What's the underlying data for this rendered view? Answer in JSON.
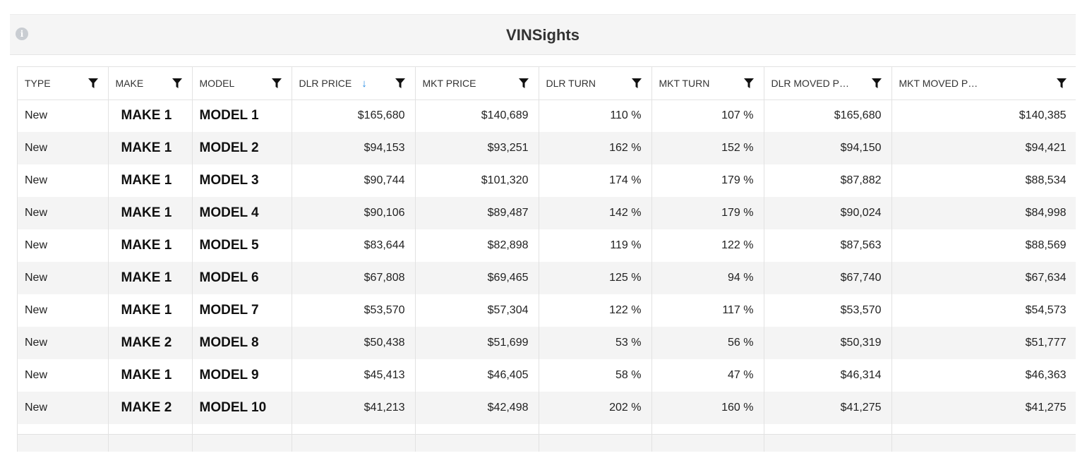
{
  "header": {
    "title": "VINSights",
    "info_icon": "info-icon"
  },
  "columns": [
    {
      "label": "TYPE",
      "sort": false
    },
    {
      "label": "MAKE",
      "sort": false
    },
    {
      "label": "MODEL",
      "sort": false
    },
    {
      "label": "DLR PRICE",
      "sort": true,
      "sort_direction": "descending"
    },
    {
      "label": "MKT PRICE",
      "sort": false
    },
    {
      "label": "DLR TURN",
      "sort": false
    },
    {
      "label": "MKT TURN",
      "sort": false
    },
    {
      "label": "DLR MOVED PRI...",
      "sort": false
    },
    {
      "label": "MKT MOVED PRICE",
      "sort": false
    }
  ],
  "rows": [
    {
      "type": "New",
      "make": "MAKE 1",
      "model": "MODEL 1",
      "dlr_price": "$165,680",
      "mkt_price": "$140,689",
      "dlr_turn": "110 %",
      "mkt_turn": "107 %",
      "dlr_moved": "$165,680",
      "mkt_moved": "$140,385"
    },
    {
      "type": "New",
      "make": "MAKE 1",
      "model": "MODEL 2",
      "dlr_price": "$94,153",
      "mkt_price": "$93,251",
      "dlr_turn": "162 %",
      "mkt_turn": "152 %",
      "dlr_moved": "$94,150",
      "mkt_moved": "$94,421"
    },
    {
      "type": "New",
      "make": "MAKE 1",
      "model": "MODEL 3",
      "dlr_price": "$90,744",
      "mkt_price": "$101,320",
      "dlr_turn": "174 %",
      "mkt_turn": "179 %",
      "dlr_moved": "$87,882",
      "mkt_moved": "$88,534"
    },
    {
      "type": "New",
      "make": "MAKE 1",
      "model": "MODEL 4",
      "dlr_price": "$90,106",
      "mkt_price": "$89,487",
      "dlr_turn": "142 %",
      "mkt_turn": "179 %",
      "dlr_moved": "$90,024",
      "mkt_moved": "$84,998"
    },
    {
      "type": "New",
      "make": "MAKE 1",
      "model": "MODEL 5",
      "dlr_price": "$83,644",
      "mkt_price": "$82,898",
      "dlr_turn": "119 %",
      "mkt_turn": "122 %",
      "dlr_moved": "$87,563",
      "mkt_moved": "$88,569"
    },
    {
      "type": "New",
      "make": "MAKE 1",
      "model": "MODEL 6",
      "dlr_price": "$67,808",
      "mkt_price": "$69,465",
      "dlr_turn": "125 %",
      "mkt_turn": "94 %",
      "dlr_moved": "$67,740",
      "mkt_moved": "$67,634"
    },
    {
      "type": "New",
      "make": "MAKE 1",
      "model": "MODEL 7",
      "dlr_price": "$53,570",
      "mkt_price": "$57,304",
      "dlr_turn": "122 %",
      "mkt_turn": "117 %",
      "dlr_moved": "$53,570",
      "mkt_moved": "$54,573"
    },
    {
      "type": "New",
      "make": "MAKE 2",
      "model": "MODEL 8",
      "dlr_price": "$50,438",
      "mkt_price": "$51,699",
      "dlr_turn": "53 %",
      "mkt_turn": "56 %",
      "dlr_moved": "$50,319",
      "mkt_moved": "$51,777"
    },
    {
      "type": "New",
      "make": "MAKE 1",
      "model": "MODEL 9",
      "dlr_price": "$45,413",
      "mkt_price": "$46,405",
      "dlr_turn": "58 %",
      "mkt_turn": "47 %",
      "dlr_moved": "$46,314",
      "mkt_moved": "$46,363"
    },
    {
      "type": "New",
      "make": "MAKE 2",
      "model": "MODEL 10",
      "dlr_price": "$41,213",
      "mkt_price": "$42,498",
      "dlr_turn": "202 %",
      "mkt_turn": "160 %",
      "dlr_moved": "$41,275",
      "mkt_moved": "$41,275"
    }
  ]
}
